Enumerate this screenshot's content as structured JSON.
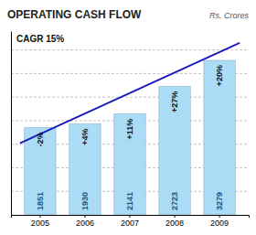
{
  "chart_data": {
    "type": "bar",
    "title": "OPERATING CASH FLOW",
    "subtitle": "Rs. Crores",
    "annotations": [
      "CAGR 15%"
    ],
    "categories": [
      "2005",
      "2006",
      "2007",
      "2008",
      "2009"
    ],
    "values": [
      1851,
      1930,
      2141,
      2723,
      3279
    ],
    "color": "#aadcf5",
    "data_labels": true,
    "growth_labels": [
      "-2%",
      "+4%",
      "+11%",
      "+27%",
      "+20%"
    ],
    "trend": {
      "values": [
        1520,
        3650
      ],
      "color": "#1818bb"
    },
    "ylim": [
      0,
      3900
    ],
    "yticks": [
      500,
      1000,
      1500,
      2000,
      2500,
      3000,
      3500
    ],
    "grid": true,
    "tick_labels": "x"
  }
}
